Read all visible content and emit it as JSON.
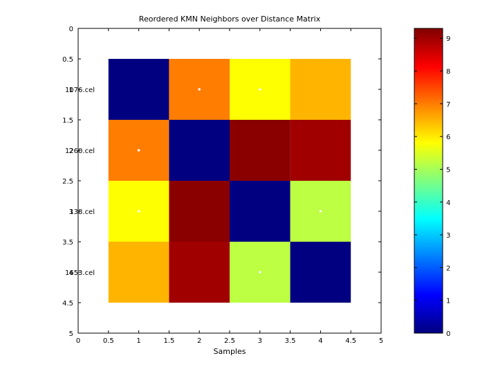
{
  "chart_data": {
    "type": "heatmap",
    "title": "Reordered KMN Neighbors over Distance Matrix",
    "xlabel": "Samples",
    "ylabel": "",
    "xlim": [
      0,
      5
    ],
    "ylim": [
      0,
      5
    ],
    "x_ticks": [
      "0",
      "0.5",
      "1",
      "1.5",
      "2",
      "2.5",
      "3",
      "3.5",
      "4",
      "4.5",
      "5"
    ],
    "y_ticks": [
      "0",
      "0.5",
      "1",
      "1.5",
      "2",
      "2.5",
      "3",
      "3.5",
      "4",
      "4.5",
      "5"
    ],
    "row_labels": [
      "1076.cel",
      "1260.cel",
      "138.cel",
      "1653.cel"
    ],
    "matrix": [
      [
        0,
        7.0,
        5.8,
        6.5
      ],
      [
        7.0,
        0,
        9.2,
        9.0
      ],
      [
        5.8,
        9.2,
        0,
        5.2
      ],
      [
        6.5,
        9.0,
        5.2,
        0
      ]
    ],
    "neighbor_markers": [
      {
        "row": 1,
        "col": 2
      },
      {
        "row": 1,
        "col": 3
      },
      {
        "row": 2,
        "col": 1
      },
      {
        "row": 3,
        "col": 1
      },
      {
        "row": 3,
        "col": 4
      },
      {
        "row": 4,
        "col": 3
      }
    ],
    "colorbar": {
      "colormap": "jet",
      "range": [
        0,
        9.3
      ],
      "ticks": [
        "0",
        "1",
        "2",
        "3",
        "4",
        "5",
        "6",
        "7",
        "8",
        "9"
      ]
    },
    "grid": false,
    "background": "#ffffff",
    "marker_color": "#ffffff"
  }
}
